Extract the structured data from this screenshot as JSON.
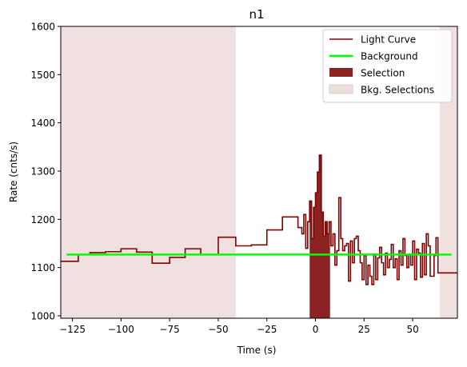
{
  "chart_data": {
    "type": "line",
    "title": "n1",
    "xlabel": "Time (s)",
    "ylabel": "Rate (cnts/s)",
    "xlim": [
      -131,
      73
    ],
    "ylim": [
      995,
      1600
    ],
    "x_ticks": [
      -125,
      -100,
      -75,
      -50,
      -25,
      0,
      25,
      50
    ],
    "x_tick_labels": [
      "−125",
      "−100",
      "−75",
      "−50",
      "−25",
      "0",
      "25",
      "50"
    ],
    "y_ticks": [
      1000,
      1100,
      1200,
      1300,
      1400,
      1500,
      1600
    ],
    "y_tick_labels": [
      "1000",
      "1100",
      "1200",
      "1300",
      "1400",
      "1500",
      "1600"
    ],
    "grid": false,
    "legend_position": "top-right",
    "legend": [
      {
        "label": "Light Curve",
        "kind": "line",
        "color": "#800000"
      },
      {
        "label": "Background",
        "kind": "line",
        "color": "#00ff00"
      },
      {
        "label": "Selection",
        "kind": "patch",
        "color": "#8b2323"
      },
      {
        "label": "Bkg. Selections",
        "kind": "patch",
        "color": "#eedddd"
      }
    ],
    "colors": {
      "light_curve": "#800000",
      "background": "#00ff00",
      "selection": "#8b2323",
      "bkg_selection": "#eedddd"
    },
    "series": [
      {
        "name": "Light Curve",
        "style": "step",
        "x": [
          -131,
          -122,
          -116,
          -108,
          -100,
          -92,
          -84,
          -75,
          -67,
          -59,
          -50,
          -41,
          -33,
          -25,
          -17,
          -9,
          -7,
          -6,
          -5,
          -4,
          -3,
          -2,
          -1,
          0,
          1,
          2,
          3,
          4,
          5,
          6,
          7,
          8,
          9,
          10,
          11,
          12,
          13,
          14,
          15,
          16,
          17,
          18,
          19,
          20,
          21,
          22,
          23,
          24,
          25,
          26,
          27,
          28,
          29,
          30,
          31,
          32,
          33,
          34,
          35,
          36,
          37,
          38,
          39,
          40,
          41,
          42,
          43,
          44,
          45,
          46,
          47,
          48,
          49,
          50,
          51,
          52,
          53,
          54,
          55,
          56,
          57,
          58,
          59,
          60,
          61,
          62,
          63,
          64,
          65,
          73
        ],
        "y": [
          1113,
          1127,
          1131,
          1133,
          1139,
          1132,
          1109,
          1121,
          1139,
          1127,
          1163,
          1145,
          1147,
          1178,
          1205,
          1183,
          1170,
          1210,
          1140,
          1195,
          1238,
          1160,
          1225,
          1255,
          1298,
          1333,
          1215,
          1165,
          1195,
          1170,
          1195,
          1145,
          1170,
          1105,
          1135,
          1245,
          1160,
          1135,
          1145,
          1150,
          1072,
          1155,
          1110,
          1160,
          1165,
          1135,
          1110,
          1075,
          1125,
          1065,
          1105,
          1082,
          1065,
          1128,
          1075,
          1120,
          1142,
          1110,
          1085,
          1130,
          1100,
          1117,
          1148,
          1100,
          1118,
          1075,
          1135,
          1105,
          1160,
          1125,
          1100,
          1128,
          1105,
          1155,
          1075,
          1138,
          1130,
          1080,
          1150,
          1085,
          1170,
          1145,
          1082,
          1082,
          1125,
          1162,
          1089,
          1089,
          1089,
          1089
        ]
      },
      {
        "name": "Background",
        "style": "line",
        "x": [
          -128,
          70
        ],
        "y": [
          1127,
          1127
        ]
      }
    ],
    "selection": {
      "x_start": -3,
      "x_end": 7.5
    },
    "bkg_selections": [
      {
        "x_start": -131,
        "x_end": -41
      },
      {
        "x_start": 64,
        "x_end": 73
      }
    ]
  }
}
